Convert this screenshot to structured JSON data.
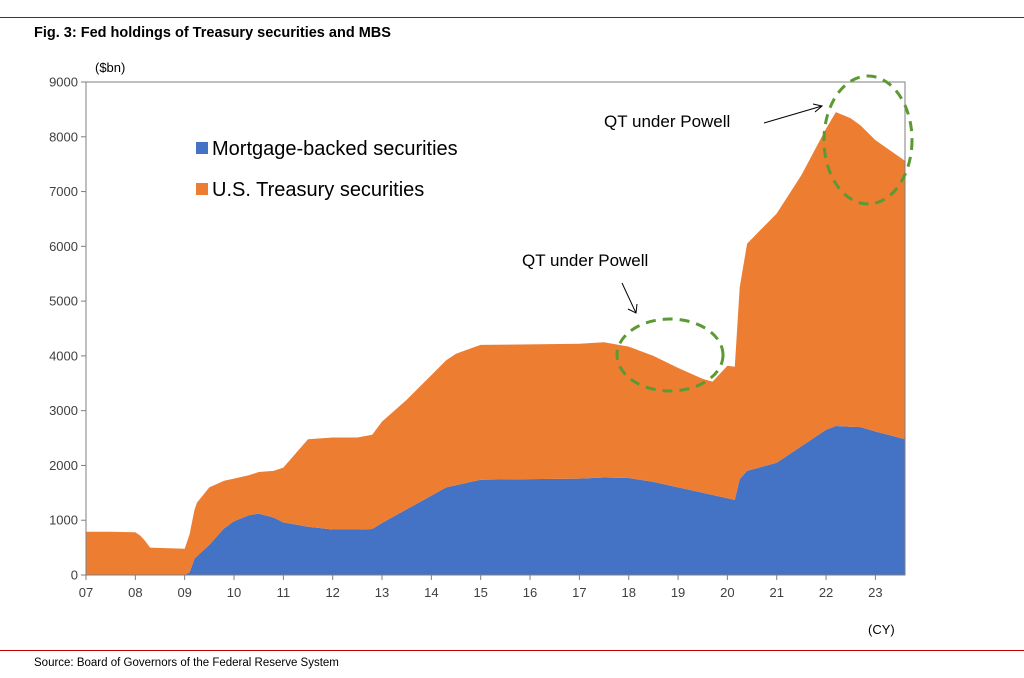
{
  "figure": {
    "title": "Fig. 3: Fed holdings of Treasury securities and MBS",
    "source": "Source: Board of Governors of the Federal Reserve System"
  },
  "colors": {
    "mbs": "#4472C4",
    "treasury": "#ED7D31",
    "rule": "#C00000",
    "circle": "#5B9A32"
  },
  "chart_data": {
    "type": "area",
    "stacked": true,
    "title": "Fig. 3: Fed holdings of Treasury securities and MBS",
    "ylabel": "($bn)",
    "xlabel": "(CY)",
    "ylim": [
      0,
      9000
    ],
    "yticks": [
      0,
      1000,
      2000,
      3000,
      4000,
      5000,
      6000,
      7000,
      8000,
      9000
    ],
    "xlim": [
      2007.0,
      2023.6
    ],
    "xticks": [
      {
        "value": 2007,
        "label": "07"
      },
      {
        "value": 2008,
        "label": "08"
      },
      {
        "value": 2009,
        "label": "09"
      },
      {
        "value": 2010,
        "label": "10"
      },
      {
        "value": 2011,
        "label": "11"
      },
      {
        "value": 2012,
        "label": "12"
      },
      {
        "value": 2013,
        "label": "13"
      },
      {
        "value": 2014,
        "label": "14"
      },
      {
        "value": 2015,
        "label": "15"
      },
      {
        "value": 2016,
        "label": "16"
      },
      {
        "value": 2017,
        "label": "17"
      },
      {
        "value": 2018,
        "label": "18"
      },
      {
        "value": 2019,
        "label": "19"
      },
      {
        "value": 2020,
        "label": "20"
      },
      {
        "value": 2021,
        "label": "21"
      },
      {
        "value": 2022,
        "label": "22"
      },
      {
        "value": 2023,
        "label": "23"
      }
    ],
    "legend": {
      "placement": "upper-left"
    },
    "series": [
      {
        "name": "Mortgage-backed securities",
        "color_key": "mbs",
        "points": [
          [
            2007.0,
            0
          ],
          [
            2009.0,
            0
          ],
          [
            2009.1,
            50
          ],
          [
            2009.2,
            300
          ],
          [
            2009.5,
            550
          ],
          [
            2009.8,
            850
          ],
          [
            2010.0,
            980
          ],
          [
            2010.3,
            1090
          ],
          [
            2010.5,
            1120
          ],
          [
            2010.8,
            1050
          ],
          [
            2011.0,
            960
          ],
          [
            2011.5,
            880
          ],
          [
            2012.0,
            830
          ],
          [
            2012.5,
            830
          ],
          [
            2012.8,
            840
          ],
          [
            2013.0,
            950
          ],
          [
            2013.5,
            1200
          ],
          [
            2014.0,
            1450
          ],
          [
            2014.3,
            1600
          ],
          [
            2014.8,
            1700
          ],
          [
            2015.0,
            1740
          ],
          [
            2016.0,
            1750
          ],
          [
            2017.0,
            1760
          ],
          [
            2017.5,
            1780
          ],
          [
            2018.0,
            1770
          ],
          [
            2018.5,
            1700
          ],
          [
            2019.0,
            1600
          ],
          [
            2019.5,
            1500
          ],
          [
            2020.0,
            1400
          ],
          [
            2020.15,
            1370
          ],
          [
            2020.25,
            1750
          ],
          [
            2020.4,
            1900
          ],
          [
            2021.0,
            2050
          ],
          [
            2021.5,
            2350
          ],
          [
            2022.0,
            2650
          ],
          [
            2022.2,
            2720
          ],
          [
            2022.7,
            2700
          ],
          [
            2023.0,
            2620
          ],
          [
            2023.6,
            2480
          ]
        ]
      },
      {
        "name": "U.S. Treasury securities",
        "color_key": "treasury",
        "points": [
          [
            2007.0,
            790
          ],
          [
            2007.5,
            790
          ],
          [
            2008.0,
            780
          ],
          [
            2008.1,
            720
          ],
          [
            2008.2,
            620
          ],
          [
            2008.3,
            500
          ],
          [
            2009.0,
            480
          ],
          [
            2009.15,
            800
          ],
          [
            2009.25,
            980
          ],
          [
            2009.5,
            1050
          ],
          [
            2009.8,
            870
          ],
          [
            2010.0,
            780
          ],
          [
            2010.3,
            730
          ],
          [
            2010.5,
            760
          ],
          [
            2010.8,
            850
          ],
          [
            2011.0,
            1000
          ],
          [
            2011.5,
            1600
          ],
          [
            2012.0,
            1680
          ],
          [
            2012.5,
            1680
          ],
          [
            2012.8,
            1720
          ],
          [
            2013.0,
            1850
          ],
          [
            2013.5,
            2000
          ],
          [
            2014.0,
            2200
          ],
          [
            2014.5,
            2400
          ],
          [
            2015.0,
            2460
          ],
          [
            2016.0,
            2460
          ],
          [
            2017.0,
            2460
          ],
          [
            2017.5,
            2470
          ],
          [
            2018.0,
            2400
          ],
          [
            2018.5,
            2300
          ],
          [
            2019.0,
            2180
          ],
          [
            2019.5,
            2080
          ],
          [
            2019.7,
            2070
          ],
          [
            2020.0,
            2420
          ],
          [
            2020.15,
            2430
          ],
          [
            2020.25,
            3500
          ],
          [
            2020.4,
            4150
          ],
          [
            2021.0,
            4550
          ],
          [
            2021.5,
            4950
          ],
          [
            2022.0,
            5500
          ],
          [
            2022.2,
            5730
          ],
          [
            2022.5,
            5630
          ],
          [
            2023.0,
            5320
          ],
          [
            2023.6,
            5080
          ]
        ]
      }
    ],
    "annotations": [
      {
        "text": "QT under Powell",
        "target": [
          2018.6,
          4000
        ]
      },
      {
        "text": "QT under Powell",
        "target": [
          2022.7,
          8450
        ]
      }
    ]
  }
}
